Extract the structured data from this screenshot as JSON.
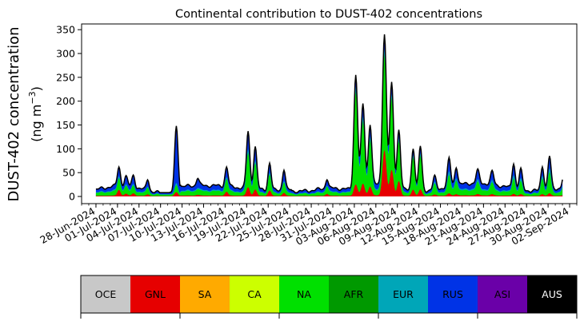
{
  "chart_data": {
    "type": "area",
    "title": "Continental contribution to DUST-402 concentrations",
    "xlabel": "",
    "ylabel_line1": "DUST-402 concentration",
    "ylabel_line2_prefix": "(ng m",
    "ylabel_line2_sup": "−3",
    "ylabel_line2_suffix": ")",
    "x_range": [
      "2024-06-26",
      "2024-09-03"
    ],
    "ylim": [
      -15,
      362
    ],
    "yticks": [
      0,
      50,
      100,
      150,
      200,
      250,
      300,
      350
    ],
    "xticks": [
      "28-Jun-2024",
      "01-Jul-2024",
      "04-Jul-2024",
      "07-Jul-2024",
      "10-Jul-2024",
      "13-Jul-2024",
      "16-Jul-2024",
      "19-Jul-2024",
      "22-Jul-2024",
      "25-Jul-2024",
      "28-Jul-2024",
      "31-Jul-2024",
      "03-Aug-2024",
      "06-Aug-2024",
      "09-Aug-2024",
      "12-Aug-2024",
      "15-Aug-2024",
      "18-Aug-2024",
      "21-Aug-2024",
      "24-Aug-2024",
      "27-Aug-2024",
      "30-Aug-2024",
      "02-Sep-2024"
    ],
    "xtick_dates": [
      "2024-06-28",
      "2024-07-01",
      "2024-07-04",
      "2024-07-07",
      "2024-07-10",
      "2024-07-13",
      "2024-07-16",
      "2024-07-19",
      "2024-07-22",
      "2024-07-25",
      "2024-07-28",
      "2024-07-31",
      "2024-08-03",
      "2024-08-06",
      "2024-08-09",
      "2024-08-12",
      "2024-08-15",
      "2024-08-18",
      "2024-08-21",
      "2024-08-24",
      "2024-08-27",
      "2024-08-30",
      "2024-09-02"
    ],
    "grid": false,
    "total_line_color": "#000000",
    "series_colors": {
      "GNL": "#e60000",
      "NA": "#00e000",
      "EUR": "#00a6b8",
      "RUS": "#0033e6",
      "ASI": "#6a00a8"
    },
    "data_start": "2024-06-28",
    "data_end": "2024-09-01",
    "peaks": [
      {
        "date": "2024-07-01",
        "total": 62,
        "shares": [
          0.3,
          0.4,
          0.05,
          0.22,
          0.03
        ]
      },
      {
        "date": "2024-07-02",
        "total": 44,
        "shares": [
          0.2,
          0.35,
          0.05,
          0.37,
          0.03
        ]
      },
      {
        "date": "2024-07-03",
        "total": 45,
        "shares": [
          0.2,
          0.35,
          0.05,
          0.37,
          0.03
        ]
      },
      {
        "date": "2024-07-05",
        "total": 35,
        "shares": [
          0.15,
          0.4,
          0.05,
          0.37,
          0.03
        ]
      },
      {
        "date": "2024-07-09",
        "total": 148,
        "shares": [
          0.06,
          0.08,
          0.03,
          0.8,
          0.03
        ]
      },
      {
        "date": "2024-07-12",
        "total": 38,
        "shares": [
          0.1,
          0.2,
          0.05,
          0.62,
          0.03
        ]
      },
      {
        "date": "2024-07-16",
        "total": 62,
        "shares": [
          0.2,
          0.45,
          0.05,
          0.27,
          0.03
        ]
      },
      {
        "date": "2024-07-19",
        "total": 137,
        "shares": [
          0.15,
          0.55,
          0.05,
          0.22,
          0.03
        ]
      },
      {
        "date": "2024-07-20",
        "total": 105,
        "shares": [
          0.15,
          0.55,
          0.05,
          0.22,
          0.03
        ]
      },
      {
        "date": "2024-07-22",
        "total": 70,
        "shares": [
          0.2,
          0.5,
          0.05,
          0.22,
          0.03
        ]
      },
      {
        "date": "2024-07-24",
        "total": 55,
        "shares": [
          0.15,
          0.4,
          0.05,
          0.37,
          0.03
        ]
      },
      {
        "date": "2024-07-30",
        "total": 35,
        "shares": [
          0.2,
          0.45,
          0.05,
          0.27,
          0.03
        ]
      },
      {
        "date": "2024-08-03",
        "total": 255,
        "shares": [
          0.1,
          0.78,
          0.04,
          0.06,
          0.02
        ]
      },
      {
        "date": "2024-08-04",
        "total": 195,
        "shares": [
          0.15,
          0.72,
          0.04,
          0.07,
          0.02
        ]
      },
      {
        "date": "2024-08-05",
        "total": 150,
        "shares": [
          0.15,
          0.7,
          0.04,
          0.09,
          0.02
        ]
      },
      {
        "date": "2024-08-07",
        "total": 340,
        "shares": [
          0.3,
          0.6,
          0.03,
          0.05,
          0.02
        ]
      },
      {
        "date": "2024-08-08",
        "total": 240,
        "shares": [
          0.25,
          0.65,
          0.03,
          0.05,
          0.02
        ]
      },
      {
        "date": "2024-08-09",
        "total": 140,
        "shares": [
          0.25,
          0.62,
          0.04,
          0.07,
          0.02
        ]
      },
      {
        "date": "2024-08-11",
        "total": 100,
        "shares": [
          0.15,
          0.7,
          0.05,
          0.08,
          0.02
        ]
      },
      {
        "date": "2024-08-12",
        "total": 106,
        "shares": [
          0.15,
          0.7,
          0.05,
          0.08,
          0.02
        ]
      },
      {
        "date": "2024-08-14",
        "total": 45,
        "shares": [
          0.1,
          0.6,
          0.08,
          0.19,
          0.03
        ]
      },
      {
        "date": "2024-08-16",
        "total": 82,
        "shares": [
          0.08,
          0.5,
          0.1,
          0.29,
          0.03
        ]
      },
      {
        "date": "2024-08-17",
        "total": 60,
        "shares": [
          0.08,
          0.5,
          0.1,
          0.29,
          0.03
        ]
      },
      {
        "date": "2024-08-20",
        "total": 58,
        "shares": [
          0.1,
          0.5,
          0.1,
          0.27,
          0.03
        ]
      },
      {
        "date": "2024-08-22",
        "total": 55,
        "shares": [
          0.1,
          0.5,
          0.1,
          0.27,
          0.03
        ]
      },
      {
        "date": "2024-08-25",
        "total": 68,
        "shares": [
          0.08,
          0.5,
          0.1,
          0.29,
          0.03
        ]
      },
      {
        "date": "2024-08-26",
        "total": 60,
        "shares": [
          0.08,
          0.5,
          0.1,
          0.29,
          0.03
        ]
      },
      {
        "date": "2024-08-29",
        "total": 62,
        "shares": [
          0.08,
          0.55,
          0.1,
          0.24,
          0.03
        ]
      },
      {
        "date": "2024-08-30",
        "total": 85,
        "shares": [
          0.08,
          0.55,
          0.1,
          0.24,
          0.03
        ]
      },
      {
        "date": "2024-09-01",
        "total": 45,
        "shares": [
          0.08,
          0.55,
          0.1,
          0.24,
          0.03
        ]
      }
    ],
    "legend_placement": "bottom",
    "legend": [
      {
        "name": "OCE",
        "color": "#c8c8c8",
        "text_color": "#000000"
      },
      {
        "name": "GNL",
        "color": "#e60000",
        "text_color": "#000000"
      },
      {
        "name": "SA",
        "color": "#ffaa00",
        "text_color": "#000000"
      },
      {
        "name": "CA",
        "color": "#ccff00",
        "text_color": "#000000"
      },
      {
        "name": "NA",
        "color": "#00e000",
        "text_color": "#000000"
      },
      {
        "name": "AFR",
        "color": "#009900",
        "text_color": "#000000"
      },
      {
        "name": "EUR",
        "color": "#00a6b8",
        "text_color": "#000000"
      },
      {
        "name": "RUS",
        "color": "#0033e6",
        "text_color": "#000000"
      },
      {
        "name": "ASI",
        "color": "#6a00a8",
        "text_color": "#000000"
      },
      {
        "name": "AUS",
        "color": "#000000",
        "text_color": "#ffffff"
      }
    ]
  }
}
